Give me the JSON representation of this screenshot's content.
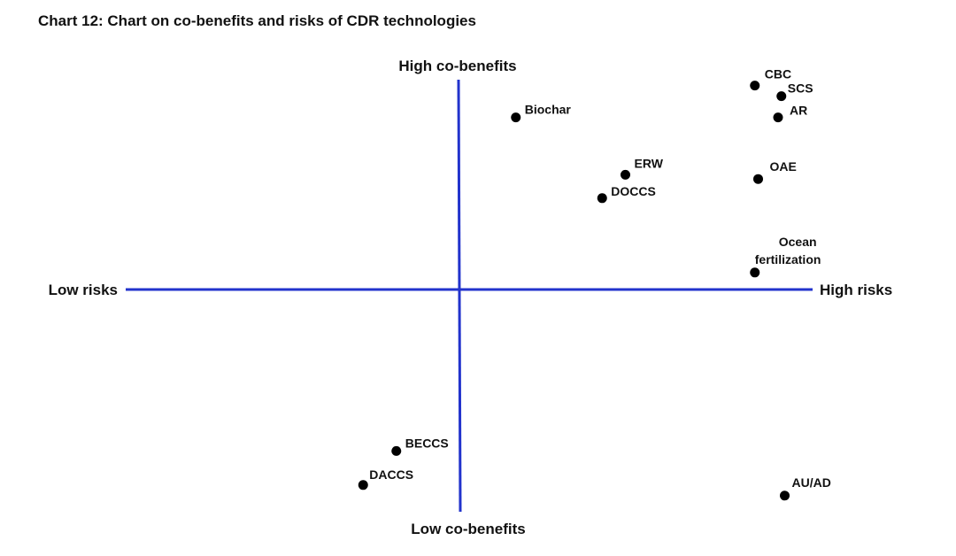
{
  "chart_data": {
    "type": "scatter",
    "title": "Chart 12: Chart on co-benefits and risks of CDR technologies",
    "axes": {
      "x_low_label": "Low risks",
      "x_high_label": "High risks",
      "y_high_label": "High co-benefits",
      "y_low_label": "Low co-benefits",
      "xlim": [
        -1,
        1
      ],
      "ylim": [
        -1,
        1
      ],
      "axis_color": "#2233cc",
      "grid": false
    },
    "points": [
      {
        "label": "CBC",
        "x": 0.89,
        "y": 0.96
      },
      {
        "label": "SCS",
        "x": 0.97,
        "y": 0.91
      },
      {
        "label": "AR",
        "x": 0.96,
        "y": 0.81
      },
      {
        "label": "Biochar",
        "x": 0.17,
        "y": 0.81
      },
      {
        "label": "ERW",
        "x": 0.5,
        "y": 0.54
      },
      {
        "label": "DOCCS",
        "x": 0.43,
        "y": 0.43
      },
      {
        "label": "OAE",
        "x": 0.9,
        "y": 0.52
      },
      {
        "label": "Ocean fertilization",
        "x": 0.89,
        "y": 0.08
      },
      {
        "label": "BECCS",
        "x": -0.19,
        "y": -0.76
      },
      {
        "label": "DACCS",
        "x": -0.29,
        "y": -0.92
      },
      {
        "label": "AU/AD",
        "x": 0.98,
        "y": -0.97
      }
    ]
  }
}
